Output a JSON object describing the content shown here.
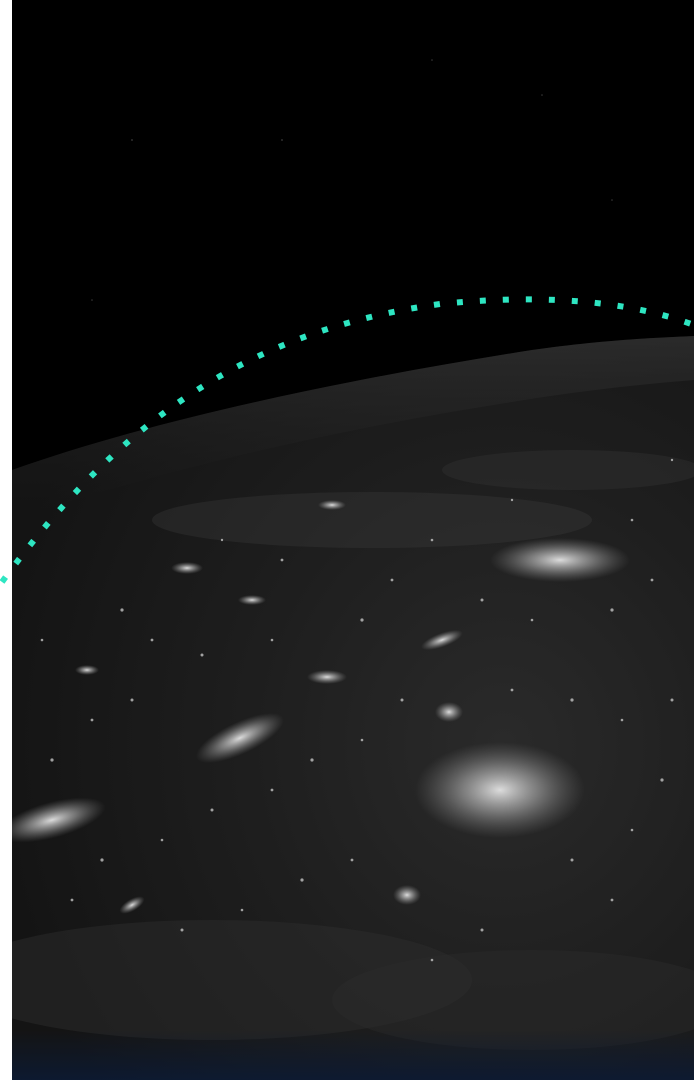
{
  "scene": {
    "subject": "earth-at-night-from-orbit",
    "image_style": "grayscale",
    "colors": {
      "space": "#000000",
      "planet_dark": "#1c1c1c",
      "city_lights": "#d8d8d8",
      "bottom_edge_tint": "#0c1a33"
    }
  },
  "orbit_path": {
    "style": "dotted",
    "color": "#2ee6c2"
  }
}
